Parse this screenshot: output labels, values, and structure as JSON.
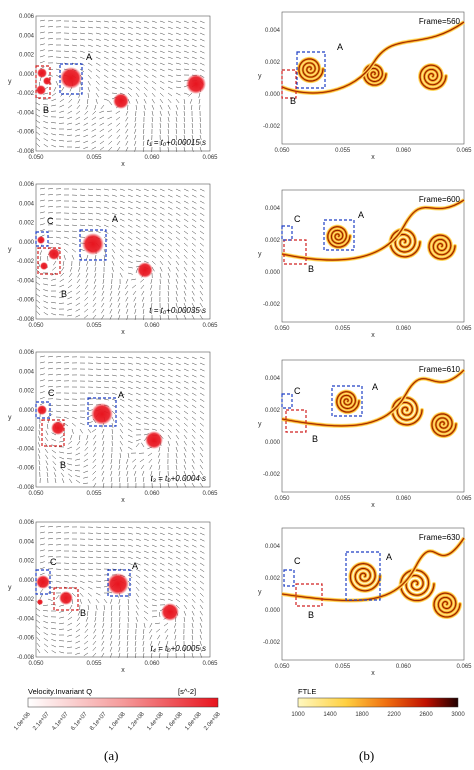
{
  "left_panels": [
    {
      "caption": "t₁ = t₀+0.00015 s",
      "labels": [
        "A",
        "B"
      ]
    },
    {
      "caption": "t = t₀+0.00035 s",
      "labels": [
        "A",
        "B",
        "C"
      ]
    },
    {
      "caption": "t₃ = t₀+0.0004 s",
      "labels": [
        "A",
        "B",
        "C"
      ]
    },
    {
      "caption": "t₄ = t₀+0.0005 s",
      "labels": [
        "A",
        "B",
        "C"
      ]
    }
  ],
  "right_panels": [
    {
      "frame": "Frame=560",
      "labels": [
        "A",
        "B"
      ]
    },
    {
      "frame": "Frame=600",
      "labels": [
        "A",
        "B",
        "C"
      ]
    },
    {
      "frame": "Frame=610",
      "labels": [
        "A",
        "B",
        "C"
      ]
    },
    {
      "frame": "Frame=630",
      "labels": [
        "A",
        "B",
        "C"
      ]
    }
  ],
  "axes": {
    "xlabel": "x",
    "ylabel": "y",
    "xticks": [
      "0.050",
      "0.055",
      "0.060",
      "0.065"
    ],
    "yticks_left": [
      "0.006",
      "0.004",
      "0.002",
      "0.000",
      "-0.002",
      "-0.004",
      "-0.006",
      "-0.008"
    ],
    "yticks_right": [
      "0.004",
      "0.002",
      "0.000",
      "-0.002"
    ]
  },
  "colorbar_left": {
    "title": "Velocity.Invariant Q",
    "unit": "[s^-2]",
    "ticks": [
      "1.0e+06",
      "2.1e+07",
      "4.1e+07",
      "6.1e+07",
      "8.1e+07",
      "1.0e+08",
      "1.2e+08",
      "1.4e+08",
      "1.6e+08",
      "1.8e+08",
      "2.0e+08"
    ]
  },
  "colorbar_right": {
    "title": "FTLE",
    "ticks": [
      "1000",
      "1400",
      "1800",
      "2200",
      "2600",
      "3000"
    ]
  },
  "subfigure_labels": [
    "(a)",
    "(b)"
  ],
  "colors": {
    "q_core": "#e8141e",
    "box_blue": "#1f3fc4",
    "box_red": "#d02020",
    "ftle_dark": "#8a1a00",
    "ftle_mid": "#f08a10",
    "ftle_light": "#ffe070"
  }
}
